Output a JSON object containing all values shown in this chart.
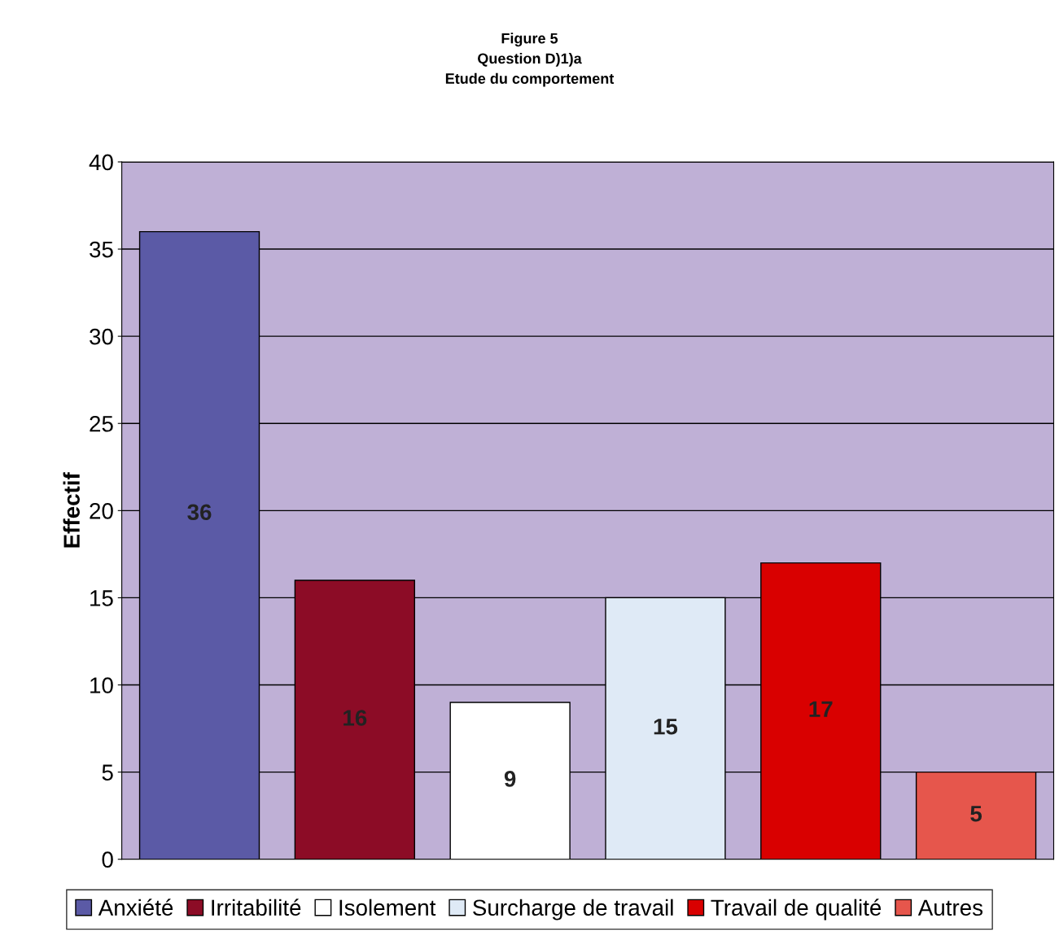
{
  "chart_data": {
    "type": "bar",
    "title": "Figure 5\nQuestion D)1)a\nEtude du comportement",
    "ylabel": "Effectif",
    "categories": [
      null
    ],
    "series": [
      {
        "name": "Anxiété",
        "color": "#5b5aa6",
        "values": [
          36
        ]
      },
      {
        "name": "Irritabilité",
        "color": "#8c0c26",
        "values": [
          16
        ]
      },
      {
        "name": "Isolement",
        "color": "#ffffff",
        "values": [
          9
        ]
      },
      {
        "name": "Surcharge de travail",
        "color": "#dfeaf6",
        "values": [
          15
        ]
      },
      {
        "name": "Travail de qualité",
        "color": "#d90000",
        "values": [
          17
        ]
      },
      {
        "name": "Autres",
        "color": "#e6564c",
        "values": [
          5
        ]
      }
    ],
    "ylim": [
      0,
      40
    ],
    "yticks": [
      0,
      5,
      10,
      15,
      20,
      25,
      30,
      35,
      40
    ],
    "grid": "y",
    "legend": "bottom",
    "tick_labels": "y",
    "data_labels": true
  }
}
